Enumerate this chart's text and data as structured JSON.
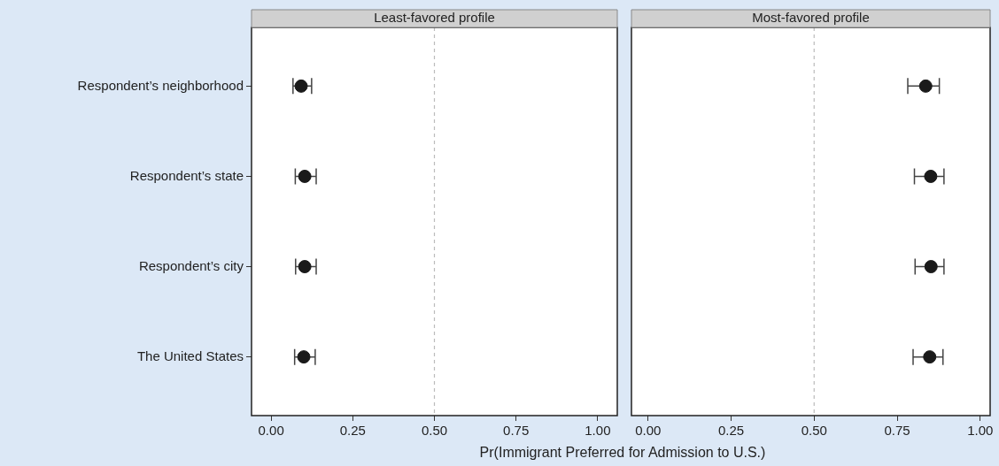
{
  "chart_data": [
    {
      "type": "scatter",
      "orientation": "horizontal",
      "title": "Least-favored profile",
      "xlabel": "Pr(Immigrant Preferred for Admission to U.S.)",
      "categories": [
        "Respondent’s neighborhood",
        "Respondent’s state",
        "Respondent’s city",
        "The United States"
      ],
      "series": [
        {
          "color": "#1a1a1a",
          "values": [
            0.092,
            0.103,
            0.103,
            0.1
          ],
          "errors": [
            [
              0.067,
              0.124
            ],
            [
              0.074,
              0.138
            ],
            [
              0.075,
              0.138
            ],
            [
              0.072,
              0.135
            ]
          ]
        }
      ],
      "xlim": [
        -0.06,
        1.06
      ],
      "xticks": [
        {
          "value": 0,
          "label": "0.00"
        },
        {
          "value": 0.25,
          "label": "0.25"
        },
        {
          "value": 0.5,
          "label": "0.50"
        },
        {
          "value": 0.75,
          "label": "0.75"
        },
        {
          "value": 1,
          "label": "1.00"
        }
      ],
      "ref_lines": [
        {
          "axis": "x",
          "value": 0.5,
          "color": "#bbbbbb",
          "line_style": "dashed"
        }
      ],
      "marker": "circle",
      "legend": false
    },
    {
      "type": "scatter",
      "orientation": "horizontal",
      "title": "Most-favored profile",
      "categories": [
        null,
        null,
        null,
        null
      ],
      "series": [
        {
          "color": "#1a1a1a",
          "values": [
            0.836,
            0.851,
            0.852,
            0.848
          ],
          "errors": [
            [
              0.782,
              0.877
            ],
            [
              0.802,
              0.891
            ],
            [
              0.804,
              0.891
            ],
            [
              0.798,
              0.888
            ]
          ]
        }
      ],
      "xlim": [
        -0.05,
        1.03
      ],
      "xticks": [
        {
          "value": 0,
          "label": "0.00"
        },
        {
          "value": 0.25,
          "label": "0.25"
        },
        {
          "value": 0.5,
          "label": "0.50"
        },
        {
          "value": 0.75,
          "label": "0.75"
        },
        {
          "value": 1,
          "label": "1.00"
        }
      ],
      "ref_lines": [
        {
          "axis": "x",
          "value": 0.5,
          "color": "#bbbbbb",
          "line_style": "dashed"
        }
      ],
      "marker": "circle",
      "legend": false,
      "tick_labels": "x"
    }
  ]
}
